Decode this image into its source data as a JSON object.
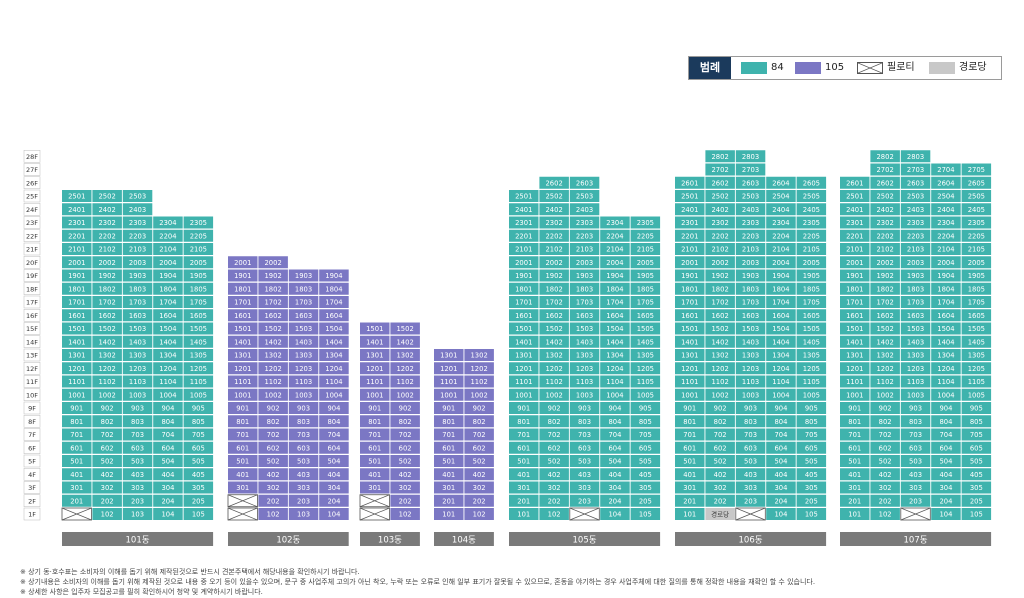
{
  "legend": {
    "title": "범례",
    "items": [
      {
        "label": "84",
        "color": "#3fb3ad",
        "type": "fill"
      },
      {
        "label": "105",
        "color": "#7b77c4",
        "type": "fill"
      },
      {
        "label": "필로티",
        "color": "#ffffff",
        "type": "piloti"
      },
      {
        "label": "경로당",
        "color": "#c8c8c8",
        "type": "gray"
      }
    ]
  },
  "floors": [
    "1F",
    "2F",
    "3F",
    "4F",
    "5F",
    "6F",
    "7F",
    "8F",
    "9F",
    "10F",
    "11F",
    "12F",
    "13F",
    "14F",
    "15F",
    "16F",
    "17F",
    "18F",
    "19F",
    "20F",
    "21F",
    "22F",
    "23F",
    "24F",
    "25F",
    "26F",
    "27F",
    "28F"
  ],
  "notes": [
    "※ 상기 동·호수표는 소비자의 이해를 돕기 위해 제작된것으로 반드시 견본주택에서 해당내용을 확인하시기 바랍니다.",
    "※ 상기내용은 소비자의 이해를 돕기 위해 제작된 것으로 내용 중 오기 등이 있을수 있으며, 문구 중 사업주체 고의가 아닌 착오, 누락 또는 오류로 인해 일부 표기가 잘못될 수 있으므로, 혼동을 야기하는 경우 사업주체에 대한 질의를 통해 정확한 내용을 재확인 할 수 있습니다.",
    "※ 상세한 사항은 입주자 모집공고를 필히 확인하시어 청약 및 계약하시기 바랍니다."
  ],
  "chart_data": {
    "type": "table",
    "title": "",
    "buildings": [
      {
        "name": "101동",
        "type": "84",
        "lines": [
          {
            "line": 1,
            "top": 25,
            "piloti": [
              1
            ]
          },
          {
            "line": 2,
            "top": 25
          },
          {
            "line": 3,
            "top": 25
          },
          {
            "line": 4,
            "top": 23
          },
          {
            "line": 5,
            "top": 23
          }
        ]
      },
      {
        "name": "102동",
        "type": "105",
        "lines": [
          {
            "line": 1,
            "top": 20,
            "piloti": [
              1,
              2
            ]
          },
          {
            "line": 2,
            "top": 20
          },
          {
            "line": 3,
            "top": 19
          },
          {
            "line": 4,
            "top": 19
          }
        ]
      },
      {
        "name": "103동",
        "type": "105",
        "lines": [
          {
            "line": 1,
            "top": 15,
            "piloti": [
              1,
              2
            ]
          },
          {
            "line": 2,
            "top": 15
          }
        ]
      },
      {
        "name": "104동",
        "type": "105",
        "lines": [
          {
            "line": 1,
            "top": 13
          },
          {
            "line": 2,
            "top": 13
          }
        ]
      },
      {
        "name": "105동",
        "type": "84",
        "lines": [
          {
            "line": 1,
            "top": 25
          },
          {
            "line": 2,
            "top": 26
          },
          {
            "line": 3,
            "top": 26,
            "piloti": [
              1
            ]
          },
          {
            "line": 4,
            "top": 23
          },
          {
            "line": 5,
            "top": 23
          }
        ]
      },
      {
        "name": "106동",
        "type": "84",
        "lines": [
          {
            "line": 1,
            "top": 26
          },
          {
            "line": 2,
            "top": 28,
            "senior": [
              1
            ]
          },
          {
            "line": 3,
            "top": 28,
            "piloti": [
              1
            ]
          },
          {
            "line": 4,
            "top": 26
          },
          {
            "line": 5,
            "top": 26
          }
        ]
      },
      {
        "name": "107동",
        "type": "84",
        "lines": [
          {
            "line": 1,
            "top": 26
          },
          {
            "line": 2,
            "top": 28
          },
          {
            "line": 3,
            "top": 28,
            "piloti": [
              1
            ]
          },
          {
            "line": 4,
            "top": 27
          },
          {
            "line": 5,
            "top": 27
          }
        ]
      }
    ],
    "senior_label": "경로당"
  }
}
